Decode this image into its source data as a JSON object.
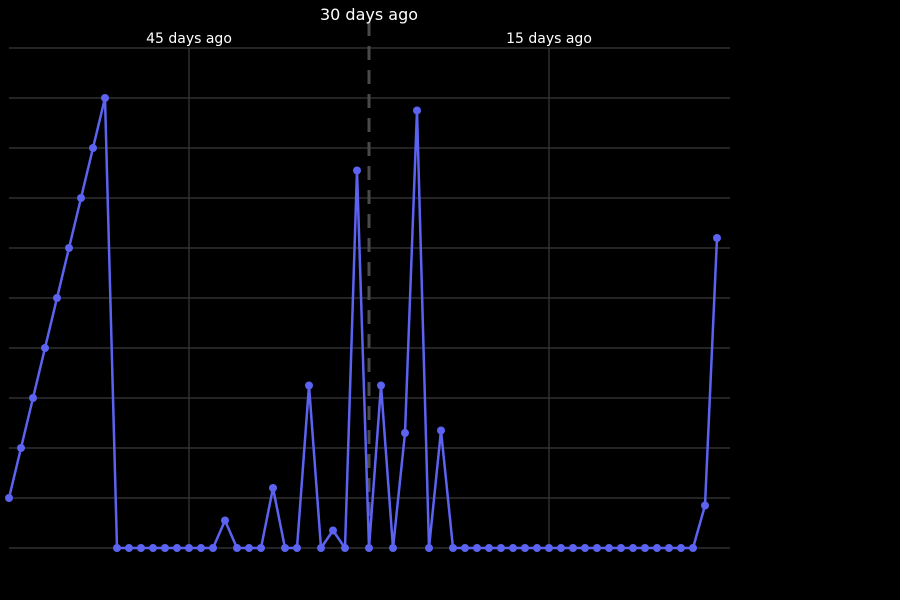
{
  "chart_data": {
    "type": "line",
    "title": "",
    "xlabel": "",
    "ylabel": "",
    "x_unit": "days ago",
    "x": [
      60,
      59,
      58,
      57,
      56,
      55,
      54,
      53,
      52,
      51,
      50,
      49,
      48,
      47,
      46,
      45,
      44,
      43,
      42,
      41,
      40,
      39,
      38,
      37,
      36,
      35,
      34,
      33,
      32,
      31,
      30,
      29,
      28,
      27,
      26,
      25,
      24,
      23,
      22,
      21,
      20,
      19,
      18,
      17,
      16,
      15,
      14,
      13,
      12,
      11,
      10,
      9,
      8,
      7,
      6,
      5,
      4,
      3,
      2,
      1
    ],
    "xlim": [
      60,
      0
    ],
    "ylim": [
      0,
      10
    ],
    "y_ticks": [
      0,
      1,
      2,
      3,
      4,
      5,
      6,
      7,
      8,
      9,
      10
    ],
    "y_tick_labels_visible": false,
    "x_ticks": [
      {
        "days_ago": 45,
        "label": "45 days ago"
      },
      {
        "days_ago": 15,
        "label": "15 days ago"
      }
    ],
    "reference_marker": {
      "days_ago": 30,
      "label": "30 days ago",
      "style": "dashed"
    },
    "grid": true,
    "background": "#000000",
    "grid_color": "#3a3a3a",
    "series": [
      {
        "color": "#5b63f0",
        "values": [
          1,
          2,
          3,
          4,
          5,
          6,
          7,
          8,
          9,
          0,
          0,
          0,
          0,
          0,
          0,
          0,
          0,
          0,
          0.55,
          0,
          0,
          0,
          1.2,
          0,
          0,
          3.25,
          0,
          0.35,
          0,
          7.55,
          0,
          3.25,
          0,
          2.3,
          8.75,
          0,
          2.35,
          0,
          0,
          0,
          0,
          0,
          0,
          0,
          0,
          0,
          0,
          0,
          0,
          0,
          0,
          0,
          0,
          0,
          0,
          0,
          0,
          0,
          0.85,
          6.2
        ]
      }
    ]
  }
}
